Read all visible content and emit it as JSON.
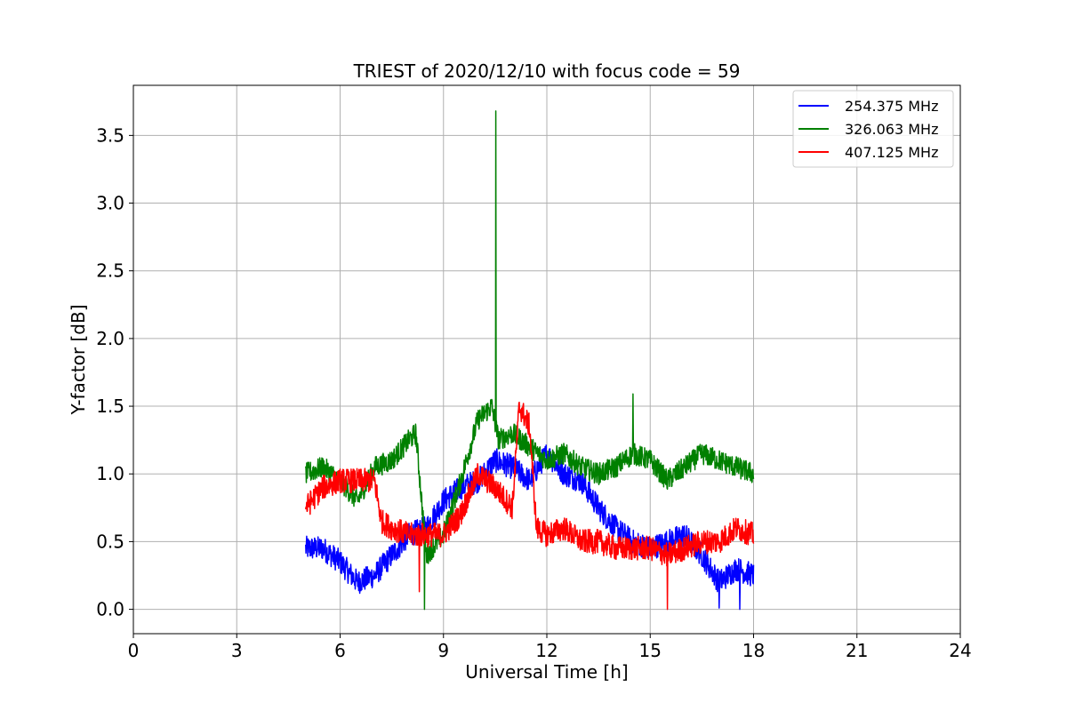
{
  "chart_data": {
    "type": "line",
    "title": "TRIEST of 2020/12/10 with focus code = 59",
    "xlabel": "Universal Time [h]",
    "ylabel": "Y-factor [dB]",
    "xlim": [
      0,
      24
    ],
    "ylim": [
      -0.18,
      3.87
    ],
    "xticks": [
      0,
      3,
      6,
      9,
      12,
      15,
      18,
      21,
      24
    ],
    "yticks": [
      0.0,
      0.5,
      1.0,
      1.5,
      2.0,
      2.5,
      3.0,
      3.5
    ],
    "ytick_labels": [
      "0.0",
      "0.5",
      "1.0",
      "1.5",
      "2.0",
      "2.5",
      "3.0",
      "3.5"
    ],
    "grid": true,
    "legend_position": "top-right",
    "series": [
      {
        "name": "254.375 MHz",
        "color": "#0000ff",
        "noise": 0.09,
        "x": [
          5.0,
          5.5,
          6.0,
          6.5,
          7.0,
          7.5,
          8.0,
          8.5,
          9.0,
          9.5,
          10.0,
          10.5,
          11.0,
          11.5,
          12.0,
          12.5,
          13.0,
          13.5,
          14.0,
          14.5,
          15.0,
          15.5,
          16.0,
          16.5,
          17.0,
          17.5,
          18.0
        ],
        "values": [
          0.45,
          0.45,
          0.35,
          0.2,
          0.25,
          0.4,
          0.55,
          0.6,
          0.8,
          0.9,
          0.95,
          1.1,
          1.05,
          0.95,
          1.15,
          1.0,
          0.95,
          0.75,
          0.6,
          0.5,
          0.45,
          0.5,
          0.55,
          0.4,
          0.2,
          0.3,
          0.25
        ]
      },
      {
        "name": "326.063 MHz",
        "color": "#008000",
        "noise": 0.08,
        "x": [
          5.0,
          5.5,
          6.0,
          6.5,
          7.0,
          7.5,
          8.0,
          8.2,
          8.5,
          9.0,
          9.5,
          10.0,
          10.4,
          10.6,
          11.0,
          11.5,
          12.0,
          12.5,
          13.0,
          13.5,
          14.0,
          14.5,
          15.0,
          15.5,
          16.0,
          16.5,
          17.0,
          17.5,
          18.0
        ],
        "values": [
          1.0,
          1.05,
          0.95,
          0.8,
          1.05,
          1.1,
          1.25,
          1.3,
          0.4,
          0.55,
          0.95,
          1.4,
          1.5,
          1.25,
          1.3,
          1.2,
          1.1,
          1.15,
          1.05,
          1.0,
          1.05,
          1.15,
          1.1,
          0.95,
          1.05,
          1.15,
          1.1,
          1.05,
          1.0
        ]
      },
      {
        "name": "407.125 MHz",
        "color": "#ff0000",
        "noise": 0.09,
        "x": [
          5.0,
          5.5,
          6.0,
          6.5,
          7.0,
          7.2,
          7.5,
          8.0,
          8.5,
          9.0,
          9.5,
          10.0,
          10.5,
          11.0,
          11.2,
          11.5,
          11.7,
          12.0,
          12.5,
          13.0,
          13.5,
          14.0,
          14.5,
          15.0,
          15.5,
          16.0,
          16.5,
          17.0,
          17.5,
          18.0
        ],
        "values": [
          0.75,
          0.9,
          0.95,
          0.95,
          0.95,
          0.65,
          0.6,
          0.55,
          0.55,
          0.55,
          0.7,
          1.0,
          0.9,
          0.75,
          1.5,
          1.35,
          0.6,
          0.55,
          0.6,
          0.5,
          0.5,
          0.45,
          0.45,
          0.45,
          0.4,
          0.45,
          0.5,
          0.5,
          0.6,
          0.55
        ]
      }
    ],
    "spikes": [
      {
        "series": 1,
        "x": 10.52,
        "value": 3.68
      },
      {
        "series": 1,
        "x": 14.5,
        "value": 1.59
      },
      {
        "series": 1,
        "x": 8.45,
        "value": 0.0
      },
      {
        "series": 2,
        "x": 8.3,
        "value": 0.13
      },
      {
        "series": 2,
        "x": 15.5,
        "value": 0.0
      },
      {
        "series": 0,
        "x": 17.0,
        "value": 0.01
      },
      {
        "series": 0,
        "x": 17.6,
        "value": 0.0
      }
    ]
  }
}
